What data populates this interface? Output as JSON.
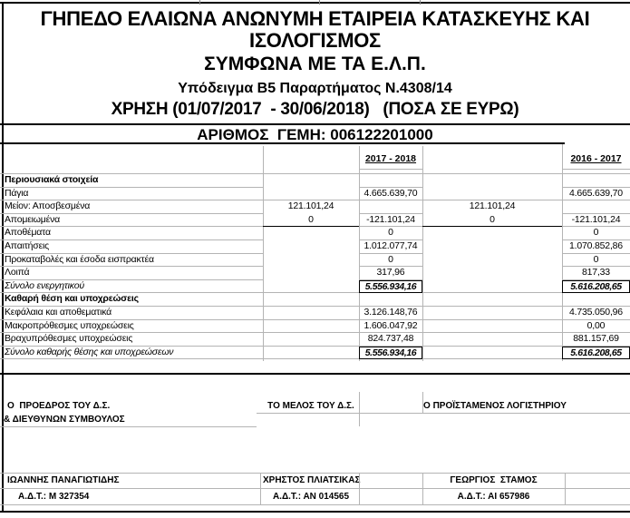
{
  "header": {
    "title_line1": "ΓΗΠΕΔΟ ΕΛΑΙΩΝΑ ΑΝΩΝΥΜΗ ΕΤΑΙΡΕΙΑ ΚΑΤΑΣΚΕΥΗΣ ΚΑΙ",
    "title_line2": "ΙΣΟΛΟΓΙΣΜΟΣ",
    "subtitle": "ΣΥΜΦΩΝΑ ΜΕ ΤΑ Ε.Λ.Π.",
    "template_line": "Υπόδειγμα Β5 Παραρτήματος Ν.4308/14",
    "period_line": "ΧΡΗΣΗ (01/07/2017  - 30/06/2018)   (ΠΟΣΑ ΣΕ ΕΥΡΩ)",
    "gemi_line": "ΑΡΙΘΜΟΣ  ΓΕΜΗ: 006122201000"
  },
  "table": {
    "col_headers": [
      "2017 - 2018",
      "2016 - 2017"
    ],
    "rows": [
      {
        "label": "Περιουσιακά στοιχεία",
        "style": "section",
        "b": "",
        "c": "",
        "d": "",
        "e": ""
      },
      {
        "label": "Πάγια",
        "style": "normal",
        "b": "",
        "c": "4.665.639,70",
        "d": "",
        "e": "4.665.639,70",
        "bd_gray": true
      },
      {
        "label": "Μείον: Αποσβεσμένα",
        "style": "normal",
        "b": "121.101,24",
        "c": "",
        "d": "121.101,24",
        "e": ""
      },
      {
        "label": "Απομειωμένα",
        "style": "normal",
        "b": "0",
        "c": "-121.101,24",
        "d": "0",
        "e": "-121.101,24",
        "bd_black": true
      },
      {
        "label": "Αποθέματα",
        "style": "normal",
        "b": "",
        "c": "0",
        "d": "",
        "e": "0"
      },
      {
        "label": "Απαιτήσεις",
        "style": "normal",
        "b": "",
        "c": "1.012.077,74",
        "d": "",
        "e": "1.070.852,86"
      },
      {
        "label": "Προκαταβολές και έσοδα εισπρακτέα",
        "style": "normal",
        "b": "",
        "c": "0",
        "d": "",
        "e": "0"
      },
      {
        "label": "Λοιπά",
        "style": "normal",
        "b": "",
        "c": "317,96",
        "d": "",
        "e": "817,33"
      },
      {
        "label": "Σύνολο ενεργητικού",
        "style": "total",
        "b": "",
        "c": "5.556.934,16",
        "d": "",
        "e": "5.616.208,65",
        "boxed": true,
        "low": true
      },
      {
        "label": "Καθαρή θέση και υποχρεώσεις",
        "style": "section",
        "b": "",
        "c": "",
        "d": "",
        "e": "",
        "low": true
      },
      {
        "label": "Κεφάλαια και αποθεματικά",
        "style": "normal",
        "b": "",
        "c": "3.126.148,76",
        "d": "",
        "e": "4.735.050,96",
        "low": true
      },
      {
        "label": "Μακροπρόθεσμες υποχρεώσεις",
        "style": "normal",
        "b": "",
        "c": "1.606.047,92",
        "d": "",
        "e": "0,00",
        "low": true
      },
      {
        "label": "Βραχυπρόθεσμες υποχρεώσεις",
        "style": "normal",
        "b": "",
        "c": "824.737,48",
        "d": "",
        "e": "881.157,69",
        "low": true
      },
      {
        "label": "Σύνολο καθαρής θέσης και υποχρεώσεων",
        "style": "total",
        "b": "",
        "c": "5.556.934,16",
        "d": "",
        "e": "5.616.208,65",
        "boxed": true,
        "low": true
      }
    ]
  },
  "signatures": [
    {
      "role_line1": "Ο  ΠΡΟΕΔΡΟΣ ΤΟΥ Δ.Σ.",
      "role_line2": "& ΔΙΕΥΘΥΝΩΝ ΣΥΜΒΟΥΛΟΣ",
      "name": "ΙΩΑΝΝΗΣ ΠΑΝΑΓΙΩΤΙΔΗΣ",
      "id_line": "Α.Δ.Τ.: Μ 327354"
    },
    {
      "role_line1": "ΤΟ ΜΕΛΟΣ ΤΟΥ Δ.Σ.",
      "role_line2": "",
      "name": "ΧΡΗΣΤΟΣ ΠΛΙΑΤΣΙΚΑΣ",
      "id_line": "Α.Δ.Τ.: ΑΝ 014565"
    },
    {
      "role_line1": "Ο ΠΡΟΪΣΤΑΜΕΝΟΣ ΛΟΓΙΣΤΗΡΙΟΥ",
      "role_line2": "",
      "name": "ΓΕΩΡΓΙΟΣ  ΣΤΑΜΟΣ",
      "id_line": "Α.Δ.Τ.: ΑΙ 657986"
    }
  ],
  "colors": {
    "grid": "#b4b4b4",
    "ink": "#000000",
    "background": "#ffffff"
  }
}
